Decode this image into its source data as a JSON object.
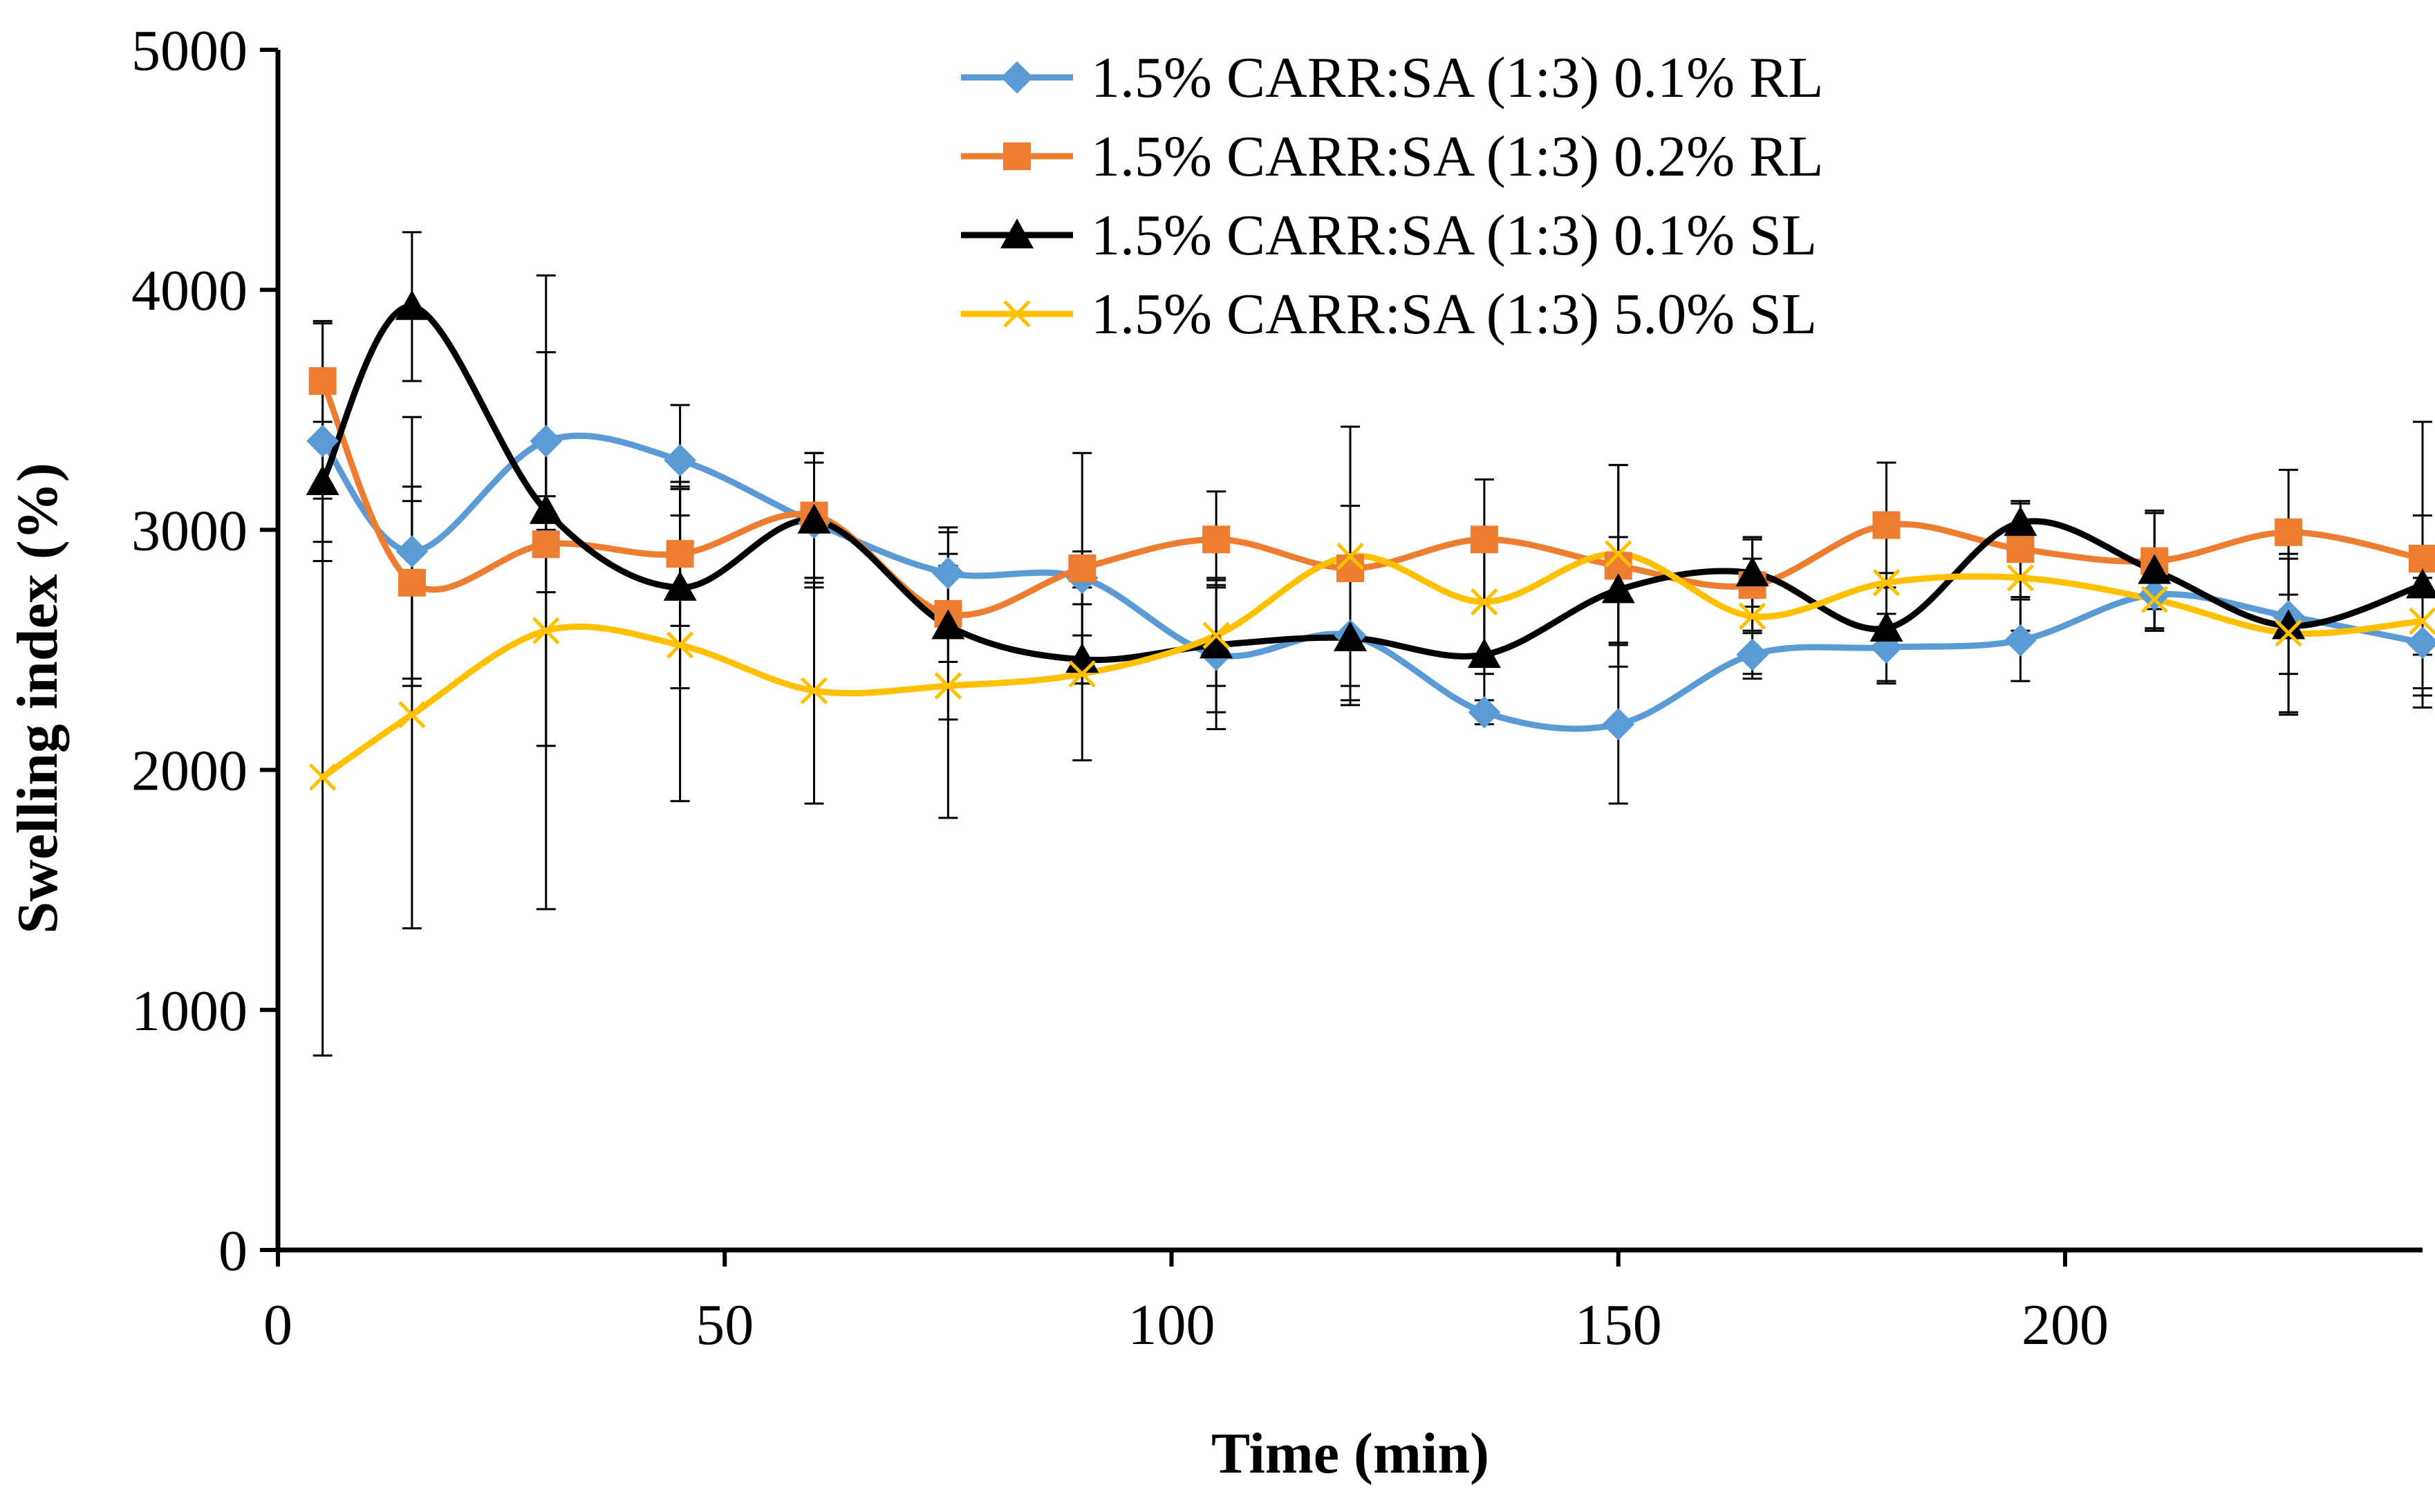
{
  "chart_data": {
    "type": "line",
    "title": "",
    "xlabel": "Time (min)",
    "ylabel": "Swelling index (%)",
    "xlim": [
      0,
      240
    ],
    "ylim": [
      0,
      5000
    ],
    "x_ticks": [
      0,
      50,
      100,
      150,
      200
    ],
    "y_ticks": [
      0,
      1000,
      2000,
      3000,
      4000,
      5000
    ],
    "grid": false,
    "legend_position": "top-right",
    "x": [
      5,
      15,
      30,
      45,
      60,
      75,
      90,
      105,
      120,
      135,
      150,
      165,
      180,
      195,
      210,
      225,
      240
    ],
    "series": [
      {
        "name": "1.5% CARR:SA (1:3) 0.1% RL",
        "color": "#5B9BD5",
        "marker": "diamond",
        "values": [
          3370,
          2910,
          3370,
          3290,
          3030,
          2820,
          2800,
          2480,
          2560,
          2240,
          2190,
          2480,
          2510,
          2540,
          2730,
          2640,
          2530
        ],
        "errors": [
          500,
          560,
          370,
          230,
          250,
          190,
          110,
          310,
          270,
          50,
          330,
          100,
          140,
          170,
          150,
          240,
          270
        ]
      },
      {
        "name": "1.5% CARR:SA (1:3) 0.2% RL",
        "color": "#ED7D31",
        "marker": "square",
        "values": [
          3620,
          2780,
          2940,
          2900,
          3060,
          2650,
          2840,
          2960,
          2840,
          2960,
          2850,
          2770,
          3020,
          2920,
          2870,
          2990,
          2880
        ],
        "errors": [
          240,
          400,
          200,
          300,
          260,
          200,
          480,
          200,
          260,
          250,
          420,
          200,
          260,
          200,
          200,
          260,
          570
        ]
      },
      {
        "name": "1.5% CARR:SA (1:3) 0.1% SL",
        "color": "#000000",
        "marker": "triangle",
        "values": [
          3200,
          3930,
          3080,
          2760,
          3040,
          2600,
          2460,
          2520,
          2550,
          2480,
          2750,
          2820,
          2590,
          3030,
          2830,
          2600,
          2770
        ],
        "errors": [
          250,
          310,
          980,
          420,
          280,
          390,
          100,
          280,
          280,
          230,
          220,
          140,
          230,
          80,
          250,
          370,
          290
        ]
      },
      {
        "name": "1.5% CARR:SA (1:3) 5.0% SL",
        "color": "#FFC000",
        "marker": "x",
        "values": [
          1970,
          2230,
          2580,
          2520,
          2330,
          2350,
          2400,
          2560,
          2890,
          2700,
          2900,
          2640,
          2780,
          2800,
          2710,
          2570,
          2620
        ],
        "errors": [
          1160,
          890,
          1160,
          650,
          470,
          550,
          360,
          210,
          540,
          300,
          370,
          240,
          220,
          220,
          120,
          330,
          280
        ]
      }
    ]
  }
}
